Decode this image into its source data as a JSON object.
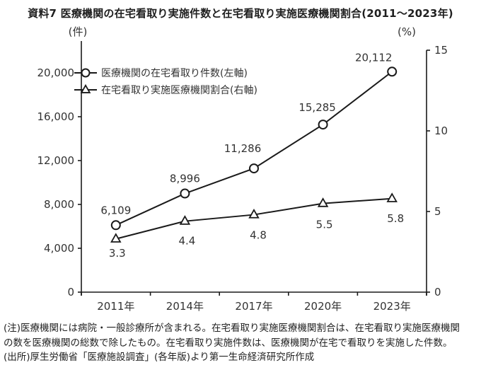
{
  "title": "資料7 医療機関の在宅看取り実施件数と在宅看取り実施医療機関割合(2011〜2023年)",
  "left_axis_unit": "(件)",
  "right_axis_unit": "(%)",
  "chart_data": {
    "type": "line",
    "categories": [
      "2011年",
      "2014年",
      "2017年",
      "2020年",
      "2023年"
    ],
    "series": [
      {
        "name": "医療機関の在宅看取り件数(左軸)",
        "axis": "left",
        "marker": "circle",
        "values": [
          6109,
          8996,
          11286,
          15285,
          20112
        ],
        "labels": [
          "6,109",
          "8,996",
          "11,286",
          "15,285",
          "20,112"
        ],
        "label_offsets": [
          [
            0,
            -21
          ],
          [
            0,
            -21
          ],
          [
            -16,
            -28
          ],
          [
            -8,
            -24
          ],
          [
            -26,
            -20
          ]
        ]
      },
      {
        "name": "在宅看取り実施医療機関割合(右軸)",
        "axis": "right",
        "marker": "triangle",
        "values": [
          3.3,
          4.4,
          4.8,
          5.5,
          5.8
        ],
        "labels": [
          "3.3",
          "4.4",
          "4.8",
          "5.5",
          "5.8"
        ],
        "label_offsets": [
          [
            2,
            20
          ],
          [
            3,
            28
          ],
          [
            6,
            29
          ],
          [
            2,
            30
          ],
          [
            5,
            28
          ]
        ]
      }
    ],
    "left_axis": {
      "ticks": [
        0,
        4000,
        8000,
        12000,
        16000,
        20000
      ],
      "tick_labels": [
        "0",
        "4,000",
        "8,000",
        "12,000",
        "16,000",
        "20,000"
      ],
      "range": [
        0,
        20000
      ]
    },
    "right_axis": {
      "ticks": [
        0,
        5,
        10,
        15
      ],
      "tick_labels": [
        "0",
        "5",
        "10",
        "15"
      ],
      "range": [
        0,
        15
      ]
    },
    "legend_position": "top-left-inside",
    "grid": false,
    "line_color": "#1a1a1a",
    "marker_fill": "#ffffff",
    "text_color": "#333333"
  },
  "notes": [
    "(注)医療機関には病院・一般診療所が含まれる。在宅看取り実施医療機関割合は、在宅看取り実施医療機関",
    "の数を医療機関の総数で除したもの。在宅看取り実施件数は、医療機関が在宅で看取りを実施した件数。",
    "(出所)厚生労働省「医療施設調査」(各年版)より第一生命経済研究所作成"
  ]
}
